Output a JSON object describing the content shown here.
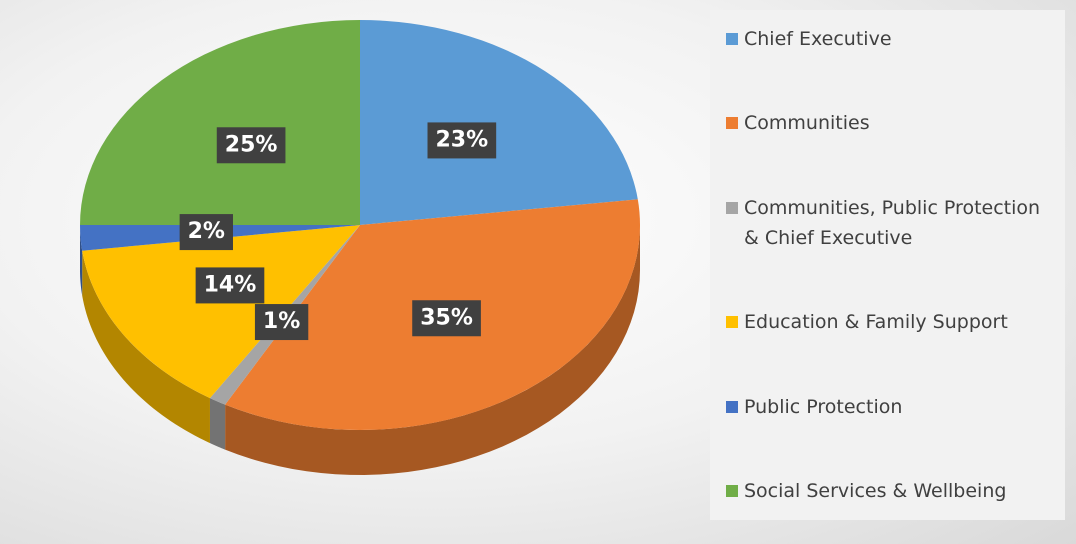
{
  "chart_data": {
    "type": "pie",
    "categories": [
      "Chief Executive",
      "Communities",
      "Communities, Public Protection & Chief Executive",
      "Education & Family Support",
      "Public Protection",
      "Social Services & Wellbeing"
    ],
    "values": [
      23,
      35,
      1,
      14,
      2,
      25
    ],
    "value_labels": [
      "23%",
      "35%",
      "1%",
      "14%",
      "2%",
      "25%"
    ],
    "colors": [
      "#5b9bd5",
      "#ed7d31",
      "#a5a5a5",
      "#ffc000",
      "#4472c4",
      "#70ad47"
    ],
    "legend": "right"
  }
}
